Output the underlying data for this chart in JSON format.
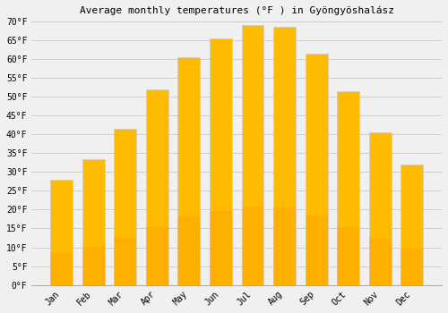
{
  "title": "Average monthly temperatures (°F ) in Gyöngyöshalász",
  "months": [
    "Jan",
    "Feb",
    "Mar",
    "Apr",
    "May",
    "Jun",
    "Jul",
    "Aug",
    "Sep",
    "Oct",
    "Nov",
    "Dec"
  ],
  "values": [
    28,
    33.5,
    41.5,
    52,
    60.5,
    65.5,
    69,
    68.5,
    61.5,
    51.5,
    40.5,
    32
  ],
  "bar_color": "#FFBB00",
  "bar_edge_color": "#cccccc",
  "background_color": "#f0f0f0",
  "plot_bg_color": "#f0f0f0",
  "grid_color": "#cccccc",
  "ylim": [
    0,
    70
  ],
  "yticks": [
    0,
    5,
    10,
    15,
    20,
    25,
    30,
    35,
    40,
    45,
    50,
    55,
    60,
    65,
    70
  ],
  "ytick_labels": [
    "0°F",
    "5°F",
    "10°F",
    "15°F",
    "20°F",
    "25°F",
    "30°F",
    "35°F",
    "40°F",
    "45°F",
    "50°F",
    "55°F",
    "60°F",
    "65°F",
    "70°F"
  ],
  "title_fontsize": 8,
  "tick_fontsize": 7,
  "font_family": "monospace",
  "bar_width": 0.7
}
